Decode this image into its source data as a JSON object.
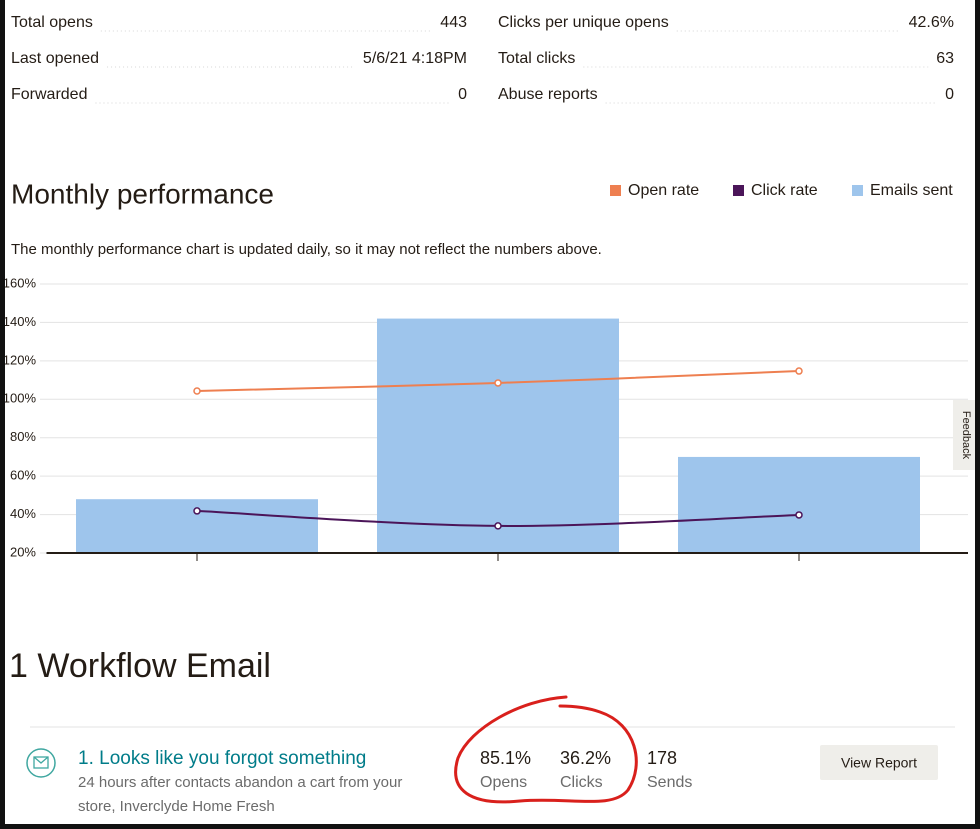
{
  "stats": [
    {
      "label": "Total opens",
      "value": 443
    },
    {
      "label": "Last opened",
      "value": "5/6/21 4:18PM"
    },
    {
      "label": "Forwarded",
      "value": 0
    },
    {
      "label": "Clicks per unique opens",
      "value": "42.6%"
    },
    {
      "label": "Total clicks",
      "value": 63
    },
    {
      "label": "Abuse reports",
      "value": 0
    }
  ],
  "chart_data": {
    "type": "bar",
    "title": "Monthly performance",
    "subtitle": "The monthly performance chart is updated daily, so it may not reflect the numbers above.",
    "categories": [
      null,
      null,
      null
    ],
    "series": [
      {
        "name": "Open rate",
        "type": "line",
        "color": "#ee7f50",
        "values": [
          104.3,
          108.5,
          114.7
        ]
      },
      {
        "name": "Click rate",
        "type": "line",
        "color": "#4b1559",
        "values": [
          41.9,
          34.1,
          39.8
        ]
      },
      {
        "name": "Emails sent",
        "type": "bar",
        "color": "#9ec5ec",
        "values": [
          48,
          142,
          70
        ]
      }
    ],
    "ylim": [
      20,
      160
    ],
    "yticks": [
      {
        "value": 160,
        "label": "160%"
      },
      {
        "value": 140,
        "label": "140%"
      },
      {
        "value": 120,
        "label": "120%"
      },
      {
        "value": 100,
        "label": "100%"
      },
      {
        "value": 80,
        "label": "80%"
      },
      {
        "value": 60,
        "label": "60%"
      },
      {
        "value": 40,
        "label": "40%"
      },
      {
        "value": 20,
        "label": "20%"
      }
    ],
    "grid": true
  },
  "workflow": {
    "heading": "1 Workflow Email",
    "emails": [
      {
        "title": "1. Looks like you forgot something",
        "description_lines": [
          "24 hours after contacts abandon a cart from your",
          "store, Inverclyde Home Fresh"
        ],
        "opens": "85.1%",
        "opens_label": "Opens",
        "clicks": "36.2%",
        "clicks_label": "Clicks",
        "sends": 178,
        "sends_label": "Sends",
        "button": "View Report"
      }
    ]
  },
  "feedback": "Feedback"
}
